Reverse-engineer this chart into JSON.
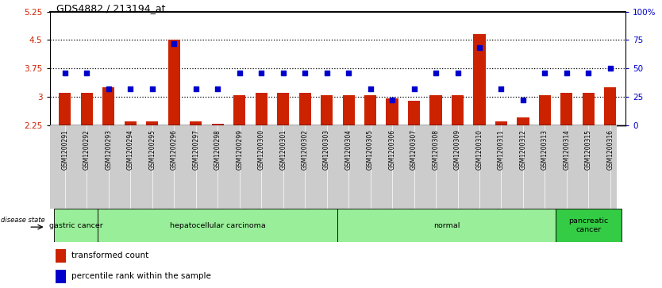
{
  "title": "GDS4882 / 213194_at",
  "samples": [
    "GSM1200291",
    "GSM1200292",
    "GSM1200293",
    "GSM1200294",
    "GSM1200295",
    "GSM1200296",
    "GSM1200297",
    "GSM1200298",
    "GSM1200299",
    "GSM1200300",
    "GSM1200301",
    "GSM1200302",
    "GSM1200303",
    "GSM1200304",
    "GSM1200305",
    "GSM1200306",
    "GSM1200307",
    "GSM1200308",
    "GSM1200309",
    "GSM1200310",
    "GSM1200311",
    "GSM1200312",
    "GSM1200313",
    "GSM1200314",
    "GSM1200315",
    "GSM1200316"
  ],
  "bar_values": [
    3.1,
    3.1,
    3.25,
    2.35,
    2.35,
    4.5,
    2.35,
    2.3,
    3.05,
    3.1,
    3.1,
    3.1,
    3.05,
    3.05,
    3.05,
    2.95,
    2.9,
    3.05,
    3.05,
    4.65,
    2.35,
    2.45,
    3.05,
    3.1,
    3.1,
    3.25
  ],
  "percentile_values": [
    46,
    46,
    32,
    32,
    32,
    72,
    32,
    32,
    46,
    46,
    46,
    46,
    46,
    46,
    32,
    22,
    32,
    46,
    46,
    68,
    32,
    22,
    46,
    46,
    46,
    50
  ],
  "bar_color": "#cc2200",
  "dot_color": "#0000cc",
  "ylim_left": [
    2.25,
    5.25
  ],
  "ylim_right": [
    0,
    100
  ],
  "yticks_left": [
    2.25,
    3.0,
    3.75,
    4.5,
    5.25
  ],
  "ytick_labels_left": [
    "2.25",
    "3",
    "3.75",
    "4.5",
    "5.25"
  ],
  "yticks_right": [
    0,
    25,
    50,
    75,
    100
  ],
  "ytick_labels_right": [
    "0",
    "25",
    "50",
    "75",
    "100%"
  ],
  "hlines": [
    3.0,
    3.75,
    4.5
  ],
  "groups": [
    {
      "label": "gastric cancer",
      "start": 0,
      "end": 2,
      "dark": false
    },
    {
      "label": "hepatocellular carcinoma",
      "start": 2,
      "end": 13,
      "dark": false
    },
    {
      "label": "normal",
      "start": 13,
      "end": 23,
      "dark": false
    },
    {
      "label": "pancreatic\ncancer",
      "start": 23,
      "end": 26,
      "dark": true
    }
  ],
  "group_color_light": "#99ee99",
  "group_color_dark": "#33cc44",
  "tick_bg_color": "#cccccc",
  "legend_bar_label": "transformed count",
  "legend_dot_label": "percentile rank within the sample",
  "disease_state_label": "disease state"
}
